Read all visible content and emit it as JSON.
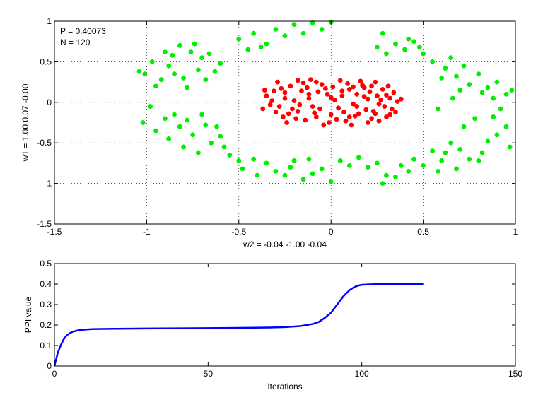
{
  "chart_data": [
    {
      "type": "scatter",
      "title": "",
      "xlabel": "w2 = -0.04  -1.00  -0.04",
      "ylabel": "w1 = 1.00  0.07  -0.00",
      "xlim": [
        -1.5,
        1
      ],
      "ylim": [
        -1.5,
        1
      ],
      "xticks": [
        -1.5,
        -1,
        -0.5,
        0,
        0.5,
        1
      ],
      "xtick_labels": [
        "-1.5",
        "-1",
        "-0.5",
        "0",
        "0.5",
        "1"
      ],
      "yticks": [
        -1.5,
        -1,
        -0.5,
        0,
        0.5,
        1
      ],
      "ytick_labels": [
        "-1.5",
        "-1",
        "-0.5",
        "0",
        "0.5",
        "1"
      ],
      "grid": "dotted",
      "annotations": [
        "P = 0.40073",
        "N = 120"
      ],
      "series": [
        {
          "color": "#ff0000",
          "points": [
            [
              -0.28,
              -0.05
            ],
            [
              -0.32,
              0.02
            ],
            [
              -0.25,
              0.12
            ],
            [
              -0.18,
              -0.11
            ],
            [
              -0.12,
              0.05
            ],
            [
              -0.08,
              -0.18
            ],
            [
              -0.02,
              0.1
            ],
            [
              0.04,
              -0.07
            ],
            [
              0.1,
              0.16
            ],
            [
              0.15,
              -0.14
            ],
            [
              0.2,
              0.04
            ],
            [
              0.26,
              -0.02
            ],
            [
              0.3,
              0.09
            ],
            [
              0.33,
              -0.08
            ],
            [
              0.36,
              0.01
            ],
            [
              -0.35,
              0.08
            ],
            [
              -0.3,
              -0.12
            ],
            [
              -0.22,
              0.2
            ],
            [
              -0.16,
              0.14
            ],
            [
              -0.1,
              -0.05
            ],
            [
              -0.05,
              0.22
            ],
            [
              0.0,
              -0.15
            ],
            [
              0.06,
              0.08
            ],
            [
              0.12,
              -0.02
            ],
            [
              0.17,
              0.21
            ],
            [
              0.22,
              -0.2
            ],
            [
              0.28,
              0.16
            ],
            [
              0.32,
              -0.15
            ],
            [
              -0.26,
              -0.18
            ],
            [
              -0.2,
              0.02
            ],
            [
              -0.14,
              -0.22
            ],
            [
              -0.07,
              0.13
            ],
            [
              0.02,
              0.03
            ],
            [
              0.08,
              -0.23
            ],
            [
              0.14,
              0.1
            ],
            [
              0.19,
              -0.09
            ],
            [
              0.24,
              0.25
            ],
            [
              0.29,
              -0.05
            ],
            [
              -0.33,
              -0.03
            ],
            [
              -0.27,
              0.17
            ],
            [
              -0.21,
              -0.08
            ],
            [
              -0.15,
              0.24
            ],
            [
              -0.09,
              -0.13
            ],
            [
              -0.03,
              0.17
            ],
            [
              0.03,
              -0.21
            ],
            [
              0.09,
              0.23
            ],
            [
              0.13,
              -0.17
            ],
            [
              0.18,
              0.07
            ],
            [
              0.23,
              -0.11
            ],
            [
              0.27,
              0.03
            ],
            [
              0.31,
              0.2
            ],
            [
              0.35,
              -0.12
            ],
            [
              -0.24,
              -0.25
            ],
            [
              -0.18,
              0.27
            ],
            [
              -0.11,
              0.28
            ],
            [
              -0.04,
              -0.28
            ],
            [
              0.05,
              0.27
            ],
            [
              0.11,
              -0.28
            ],
            [
              0.16,
              0.26
            ],
            [
              0.21,
              0.13
            ],
            [
              -0.37,
              -0.08
            ],
            [
              -0.31,
              0.14
            ],
            [
              -0.23,
              -0.14
            ],
            [
              -0.13,
              0.18
            ],
            [
              -0.06,
              -0.08
            ],
            [
              0.01,
              0.19
            ],
            [
              0.07,
              -0.12
            ],
            [
              0.12,
              0.19
            ],
            [
              0.2,
              -0.25
            ],
            [
              0.25,
              0.08
            ],
            [
              0.3,
              -0.18
            ],
            [
              0.34,
              0.12
            ],
            [
              -0.29,
              0.25
            ],
            [
              -0.19,
              -0.2
            ],
            [
              -0.12,
              0.1
            ],
            [
              -0.01,
              -0.25
            ],
            [
              0.06,
              0.14
            ],
            [
              0.14,
              -0.05
            ],
            [
              0.22,
              0.2
            ],
            [
              0.26,
              -0.23
            ],
            [
              0.38,
              0.04
            ],
            [
              -0.36,
              0.15
            ],
            [
              -0.25,
              0.05
            ],
            [
              -0.17,
              -0.03
            ],
            [
              -0.08,
              0.25
            ],
            [
              0.0,
              0.06
            ],
            [
              0.1,
              -0.18
            ],
            [
              0.18,
              0.18
            ],
            [
              0.24,
              -0.14
            ],
            [
              0.32,
              0.05
            ]
          ]
        },
        {
          "color": "#00ee00",
          "points": [
            [
              -1.04,
              0.38
            ],
            [
              -0.97,
              0.5
            ],
            [
              -0.9,
              0.62
            ],
            [
              -0.82,
              0.7
            ],
            [
              -0.74,
              0.72
            ],
            [
              -0.66,
              0.6
            ],
            [
              -0.6,
              0.48
            ],
            [
              -0.95,
              0.2
            ],
            [
              -1.01,
              0.35
            ],
            [
              -0.88,
              0.45
            ],
            [
              -0.8,
              0.3
            ],
            [
              -0.72,
              0.4
            ],
            [
              -0.68,
              0.28
            ],
            [
              -0.78,
              0.18
            ],
            [
              -0.85,
              0.35
            ],
            [
              -0.92,
              0.28
            ],
            [
              -0.63,
              0.38
            ],
            [
              -0.7,
              0.55
            ],
            [
              -0.76,
              0.62
            ],
            [
              -0.86,
              0.58
            ],
            [
              -0.5,
              0.78
            ],
            [
              -0.42,
              0.85
            ],
            [
              -0.3,
              0.9
            ],
            [
              -0.2,
              0.96
            ],
            [
              -0.1,
              0.98
            ],
            [
              0.0,
              0.99
            ],
            [
              -0.35,
              0.72
            ],
            [
              -0.25,
              0.82
            ],
            [
              -0.15,
              0.85
            ],
            [
              -0.05,
              0.9
            ],
            [
              -0.45,
              0.65
            ],
            [
              -0.38,
              0.68
            ],
            [
              0.28,
              0.85
            ],
            [
              0.35,
              0.72
            ],
            [
              0.42,
              0.78
            ],
            [
              0.48,
              0.68
            ],
            [
              0.5,
              0.6
            ],
            [
              0.3,
              0.6
            ],
            [
              0.4,
              0.65
            ],
            [
              0.45,
              0.75
            ],
            [
              0.25,
              0.68
            ],
            [
              0.55,
              0.5
            ],
            [
              0.62,
              0.42
            ],
            [
              0.68,
              0.32
            ],
            [
              0.75,
              0.22
            ],
            [
              0.82,
              0.12
            ],
            [
              0.9,
              0.25
            ],
            [
              0.95,
              0.1
            ],
            [
              0.98,
              0.15
            ],
            [
              0.72,
              0.45
            ],
            [
              0.65,
              0.55
            ],
            [
              0.8,
              0.35
            ],
            [
              0.88,
              0.05
            ],
            [
              0.6,
              0.3
            ],
            [
              0.7,
              0.15
            ],
            [
              0.85,
              0.18
            ],
            [
              -1.02,
              -0.25
            ],
            [
              -0.95,
              -0.35
            ],
            [
              -0.88,
              -0.45
            ],
            [
              -0.8,
              -0.55
            ],
            [
              -0.72,
              -0.62
            ],
            [
              -0.65,
              -0.5
            ],
            [
              -0.6,
              -0.42
            ],
            [
              -0.98,
              -0.05
            ],
            [
              -0.9,
              -0.2
            ],
            [
              -0.82,
              -0.3
            ],
            [
              -0.75,
              -0.4
            ],
            [
              -0.68,
              -0.28
            ],
            [
              -0.62,
              -0.3
            ],
            [
              -0.85,
              -0.15
            ],
            [
              -0.7,
              -0.15
            ],
            [
              -0.78,
              -0.22
            ],
            [
              -0.55,
              -0.65
            ],
            [
              -0.48,
              -0.82
            ],
            [
              -0.4,
              -0.9
            ],
            [
              -0.3,
              -0.85
            ],
            [
              -0.2,
              -0.72
            ],
            [
              -0.1,
              -0.88
            ],
            [
              0.0,
              -0.98
            ],
            [
              0.05,
              -0.72
            ],
            [
              0.1,
              -0.78
            ],
            [
              -0.15,
              -0.95
            ],
            [
              -0.25,
              -0.9
            ],
            [
              -0.35,
              -0.75
            ],
            [
              0.2,
              -0.8
            ],
            [
              0.28,
              -1.0
            ],
            [
              0.35,
              -0.92
            ],
            [
              0.42,
              -0.85
            ],
            [
              0.5,
              -0.78
            ],
            [
              0.55,
              -0.6
            ],
            [
              0.6,
              -0.72
            ],
            [
              0.68,
              -0.82
            ],
            [
              0.75,
              -0.7
            ],
            [
              0.82,
              -0.62
            ],
            [
              0.9,
              -0.4
            ],
            [
              0.95,
              -0.3
            ],
            [
              0.97,
              -0.55
            ],
            [
              0.72,
              -0.3
            ],
            [
              0.78,
              -0.2
            ],
            [
              0.85,
              -0.48
            ],
            [
              0.65,
              -0.5
            ],
            [
              0.58,
              -0.85
            ],
            [
              0.45,
              -0.7
            ],
            [
              0.38,
              -0.78
            ],
            [
              0.3,
              -0.9
            ],
            [
              0.25,
              -0.75
            ],
            [
              0.15,
              -0.68
            ],
            [
              -0.05,
              -0.82
            ],
            [
              -0.12,
              -0.7
            ],
            [
              -0.22,
              -0.8
            ],
            [
              -0.42,
              -0.7
            ],
            [
              -0.5,
              -0.72
            ],
            [
              -0.58,
              -0.55
            ],
            [
              0.62,
              -0.62
            ],
            [
              0.7,
              -0.58
            ],
            [
              0.8,
              -0.72
            ],
            [
              0.88,
              -0.18
            ],
            [
              0.92,
              -0.08
            ],
            [
              0.66,
              0.05
            ],
            [
              0.58,
              -0.08
            ]
          ]
        }
      ]
    },
    {
      "type": "line",
      "title": "",
      "xlabel": "Iterations",
      "ylabel": "PPI value",
      "xlim": [
        0,
        150
      ],
      "ylim": [
        0,
        0.5
      ],
      "xticks": [
        0,
        50,
        100,
        150
      ],
      "xtick_labels": [
        "0",
        "50",
        "100",
        "150"
      ],
      "yticks": [
        0,
        0.1,
        0.2,
        0.3,
        0.4,
        0.5
      ],
      "ytick_labels": [
        "0",
        "0.1",
        "0.2",
        "0.3",
        "0.4",
        "0.5"
      ],
      "grid": "off",
      "series": [
        {
          "color": "#0000ff",
          "x": [
            0,
            1,
            2,
            3,
            4,
            5,
            6,
            8,
            10,
            12,
            15,
            20,
            30,
            40,
            50,
            60,
            70,
            75,
            80,
            84,
            86,
            88,
            90,
            91,
            92,
            93,
            94,
            95,
            96,
            97,
            98,
            99,
            100,
            102,
            104,
            106,
            110,
            115,
            120
          ],
          "y": [
            0.0,
            0.06,
            0.1,
            0.13,
            0.15,
            0.16,
            0.168,
            0.175,
            0.178,
            0.18,
            0.181,
            0.182,
            0.183,
            0.184,
            0.185,
            0.186,
            0.188,
            0.19,
            0.195,
            0.205,
            0.215,
            0.235,
            0.26,
            0.28,
            0.3,
            0.32,
            0.34,
            0.355,
            0.37,
            0.38,
            0.388,
            0.393,
            0.396,
            0.398,
            0.399,
            0.4,
            0.4,
            0.4,
            0.4
          ]
        }
      ]
    }
  ]
}
